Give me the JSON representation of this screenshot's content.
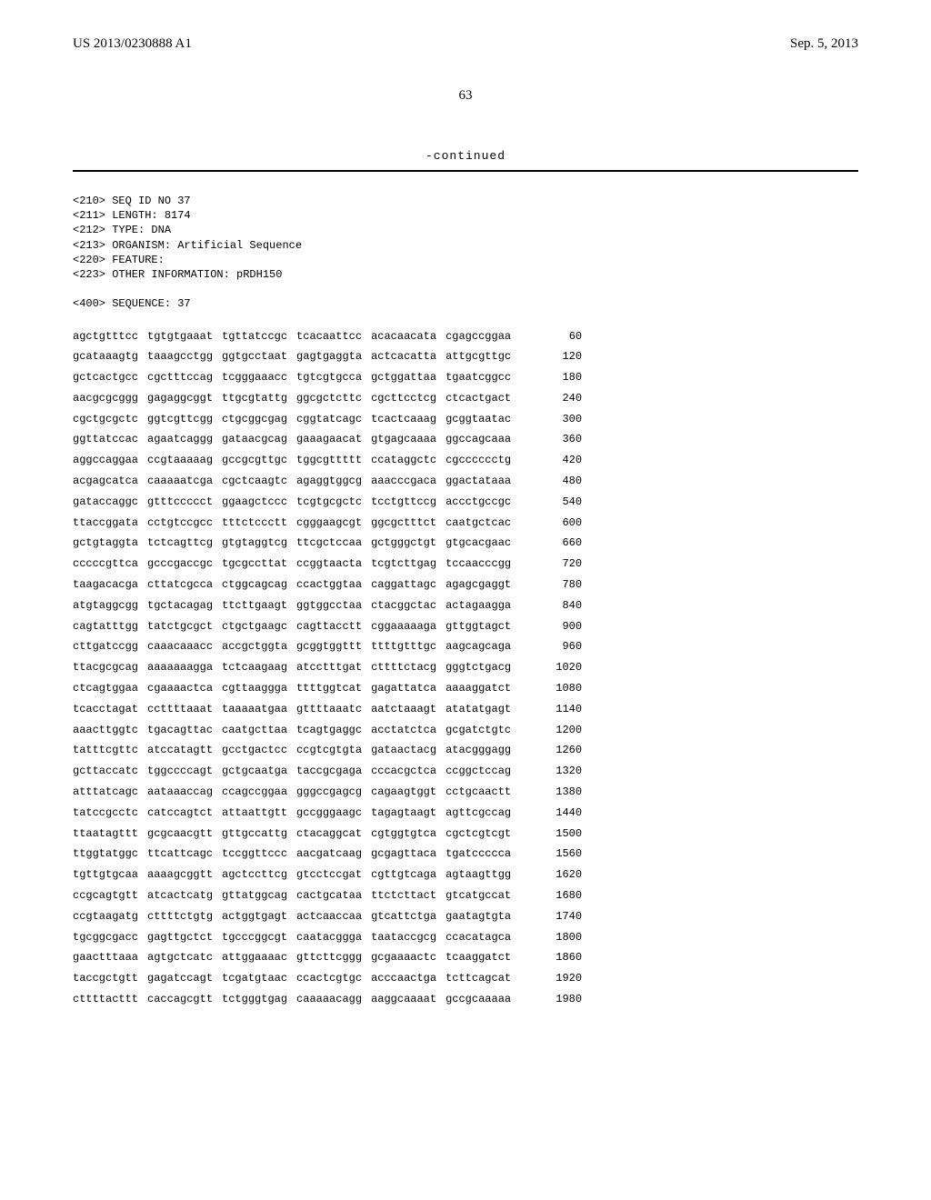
{
  "header": {
    "patent_id": "US 2013/0230888 A1",
    "date": "Sep. 5, 2013",
    "page_number": "63",
    "continued_label": "-continued"
  },
  "meta_lines": [
    "<210> SEQ ID NO 37",
    "<211> LENGTH: 8174",
    "<212> TYPE: DNA",
    "<213> ORGANISM: Artificial Sequence",
    "<220> FEATURE:",
    "<223> OTHER INFORMATION: pRDH150",
    "",
    "<400> SEQUENCE: 37"
  ],
  "sequence_rows": [
    {
      "b": [
        "agctgtttcc",
        "tgtgtgaaat",
        "tgttatccgc",
        "tcacaattcc",
        "acacaacata",
        "cgagccggaa"
      ],
      "p": 60
    },
    {
      "b": [
        "gcataaagtg",
        "taaagcctgg",
        "ggtgcctaat",
        "gagtgaggta",
        "actcacatta",
        "attgcgttgc"
      ],
      "p": 120
    },
    {
      "b": [
        "gctcactgcc",
        "cgctttccag",
        "tcgggaaacc",
        "tgtcgtgcca",
        "gctggattaa",
        "tgaatcggcc"
      ],
      "p": 180
    },
    {
      "b": [
        "aacgcgcggg",
        "gagaggcggt",
        "ttgcgtattg",
        "ggcgctcttc",
        "cgcttcctcg",
        "ctcactgact"
      ],
      "p": 240
    },
    {
      "b": [
        "cgctgcgctc",
        "ggtcgttcgg",
        "ctgcggcgag",
        "cggtatcagc",
        "tcactcaaag",
        "gcggtaatac"
      ],
      "p": 300
    },
    {
      "b": [
        "ggttatccac",
        "agaatcaggg",
        "gataacgcag",
        "gaaagaacat",
        "gtgagcaaaa",
        "ggccagcaaa"
      ],
      "p": 360
    },
    {
      "b": [
        "aggccaggaa",
        "ccgtaaaaag",
        "gccgcgttgc",
        "tggcgttttt",
        "ccataggctc",
        "cgcccccctg"
      ],
      "p": 420
    },
    {
      "b": [
        "acgagcatca",
        "caaaaatcga",
        "cgctcaagtc",
        "agaggtggcg",
        "aaacccgaca",
        "ggactataaa"
      ],
      "p": 480
    },
    {
      "b": [
        "gataccaggc",
        "gtttccccct",
        "ggaagctccc",
        "tcgtgcgctc",
        "tcctgttccg",
        "accctgccgc"
      ],
      "p": 540
    },
    {
      "b": [
        "ttaccggata",
        "cctgtccgcc",
        "tttctccctt",
        "cgggaagcgt",
        "ggcgctttct",
        "caatgctcac"
      ],
      "p": 600
    },
    {
      "b": [
        "gctgtaggta",
        "tctcagttcg",
        "gtgtaggtcg",
        "ttcgctccaa",
        "gctgggctgt",
        "gtgcacgaac"
      ],
      "p": 660
    },
    {
      "b": [
        "cccccgttca",
        "gcccgaccgc",
        "tgcgccttat",
        "ccggtaacta",
        "tcgtcttgag",
        "tccaacccgg"
      ],
      "p": 720
    },
    {
      "b": [
        "taagacacga",
        "cttatcgcca",
        "ctggcagcag",
        "ccactggtaa",
        "caggattagc",
        "agagcgaggt"
      ],
      "p": 780
    },
    {
      "b": [
        "atgtaggcgg",
        "tgctacagag",
        "ttcttgaagt",
        "ggtggcctaa",
        "ctacggctac",
        "actagaagga"
      ],
      "p": 840
    },
    {
      "b": [
        "cagtatttgg",
        "tatctgcgct",
        "ctgctgaagc",
        "cagttacctt",
        "cggaaaaaga",
        "gttggtagct"
      ],
      "p": 900
    },
    {
      "b": [
        "cttgatccgg",
        "caaacaaacc",
        "accgctggta",
        "gcggtggttt",
        "ttttgtttgc",
        "aagcagcaga"
      ],
      "p": 960
    },
    {
      "b": [
        "ttacgcgcag",
        "aaaaaaagga",
        "tctcaagaag",
        "atcctttgat",
        "cttttctacg",
        "gggtctgacg"
      ],
      "p": 1020
    },
    {
      "b": [
        "ctcagtggaa",
        "cgaaaactca",
        "cgttaaggga",
        "ttttggtcat",
        "gagattatca",
        "aaaaggatct"
      ],
      "p": 1080
    },
    {
      "b": [
        "tcacctagat",
        "ccttttaaat",
        "taaaaatgaa",
        "gttttaaatc",
        "aatctaaagt",
        "atatatgagt"
      ],
      "p": 1140
    },
    {
      "b": [
        "aaacttggtc",
        "tgacagttac",
        "caatgcttaa",
        "tcagtgaggc",
        "acctatctca",
        "gcgatctgtc"
      ],
      "p": 1200
    },
    {
      "b": [
        "tatttcgttc",
        "atccatagtt",
        "gcctgactcc",
        "ccgtcgtgta",
        "gataactacg",
        "atacgggagg"
      ],
      "p": 1260
    },
    {
      "b": [
        "gcttaccatc",
        "tggccccagt",
        "gctgcaatga",
        "taccgcgaga",
        "cccacgctca",
        "ccggctccag"
      ],
      "p": 1320
    },
    {
      "b": [
        "atttatcagc",
        "aataaaccag",
        "ccagccggaa",
        "gggccgagcg",
        "cagaagtggt",
        "cctgcaactt"
      ],
      "p": 1380
    },
    {
      "b": [
        "tatccgcctc",
        "catccagtct",
        "attaattgtt",
        "gccgggaagc",
        "tagagtaagt",
        "agttcgccag"
      ],
      "p": 1440
    },
    {
      "b": [
        "ttaatagttt",
        "gcgcaacgtt",
        "gttgccattg",
        "ctacaggcat",
        "cgtggtgtca",
        "cgctcgtcgt"
      ],
      "p": 1500
    },
    {
      "b": [
        "ttggtatggc",
        "ttcattcagc",
        "tccggttccc",
        "aacgatcaag",
        "gcgagttaca",
        "tgatccccca"
      ],
      "p": 1560
    },
    {
      "b": [
        "tgttgtgcaa",
        "aaaagcggtt",
        "agctccttcg",
        "gtcctccgat",
        "cgttgtcaga",
        "agtaagttgg"
      ],
      "p": 1620
    },
    {
      "b": [
        "ccgcagtgtt",
        "atcactcatg",
        "gttatggcag",
        "cactgcataa",
        "ttctcttact",
        "gtcatgccat"
      ],
      "p": 1680
    },
    {
      "b": [
        "ccgtaagatg",
        "cttttctgtg",
        "actggtgagt",
        "actcaaccaa",
        "gtcattctga",
        "gaatagtgta"
      ],
      "p": 1740
    },
    {
      "b": [
        "tgcggcgacc",
        "gagttgctct",
        "tgcccggcgt",
        "caatacggga",
        "taataccgcg",
        "ccacatagca"
      ],
      "p": 1800
    },
    {
      "b": [
        "gaactttaaa",
        "agtgctcatc",
        "attggaaaac",
        "gttcttcggg",
        "gcgaaaactc",
        "tcaaggatct"
      ],
      "p": 1860
    },
    {
      "b": [
        "taccgctgtt",
        "gagatccagt",
        "tcgatgtaac",
        "ccactcgtgc",
        "acccaactga",
        "tcttcagcat"
      ],
      "p": 1920
    },
    {
      "b": [
        "cttttacttt",
        "caccagcgtt",
        "tctgggtgag",
        "caaaaacagg",
        "aaggcaaaat",
        "gccgcaaaaa"
      ],
      "p": 1980
    }
  ]
}
